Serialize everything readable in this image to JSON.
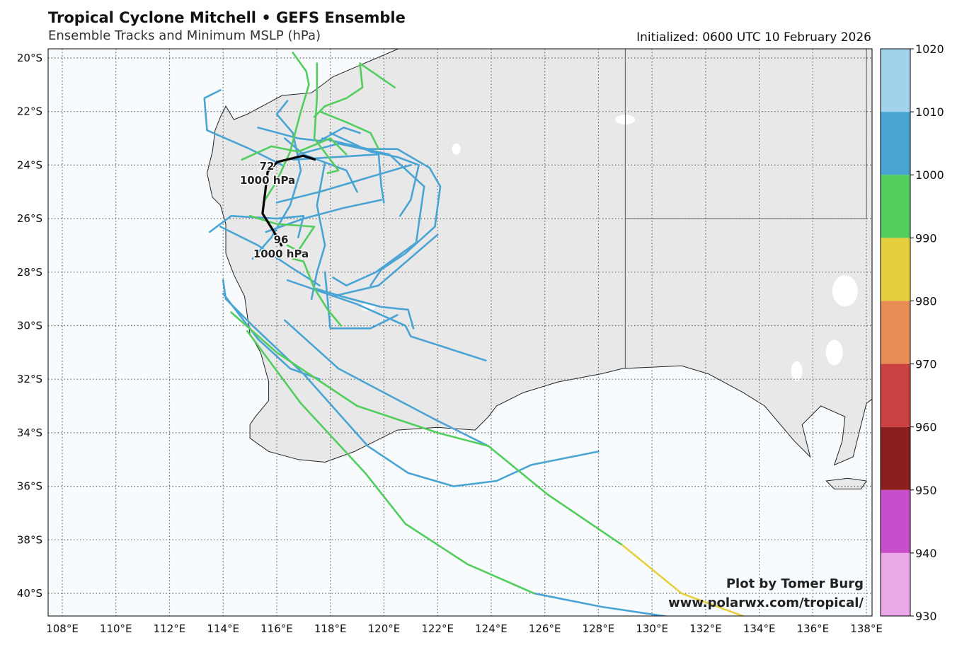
{
  "header": {
    "title": "Tropical Cyclone Mitchell • GEFS Ensemble",
    "subtitle": "Ensemble Tracks and Minimum MSLP (hPa)",
    "initialized": "Initialized: 0600 UTC 10 February 2026"
  },
  "credit": {
    "line1": "Plot by Tomer Burg",
    "line2": "www.polarwx.com/tropical/"
  },
  "chart_data": {
    "type": "map-tracks",
    "title": "Tropical Cyclone Mitchell • GEFS Ensemble",
    "lon_range": [
      107.5,
      138.2
    ],
    "lat_range": [
      -40.85,
      -19.65
    ],
    "lon_ticks": [
      "108°E",
      "110°E",
      "112°E",
      "114°E",
      "116°E",
      "118°E",
      "120°E",
      "122°E",
      "124°E",
      "126°E",
      "128°E",
      "130°E",
      "132°E",
      "134°E",
      "136°E",
      "138°E"
    ],
    "lat_ticks": [
      "20°S",
      "22°S",
      "24°S",
      "26°S",
      "28°S",
      "30°S",
      "32°S",
      "34°S",
      "36°S",
      "38°S",
      "40°S"
    ],
    "grid": true,
    "colorbar": {
      "label": "Minimum MSLP (hPa)",
      "ticks": [
        "930",
        "940",
        "950",
        "960",
        "970",
        "980",
        "990",
        "1000",
        "1010",
        "1020"
      ],
      "bins": [
        {
          "min": 930,
          "max": 940,
          "color": "#eba8e8"
        },
        {
          "min": 940,
          "max": 950,
          "color": "#c84fcb"
        },
        {
          "min": 950,
          "max": 960,
          "color": "#8b1e1e"
        },
        {
          "min": 960,
          "max": 970,
          "color": "#c94141"
        },
        {
          "min": 970,
          "max": 980,
          "color": "#e88c56"
        },
        {
          "min": 980,
          "max": 990,
          "color": "#e6cf3e"
        },
        {
          "min": 990,
          "max": 1000,
          "color": "#52cd5e"
        },
        {
          "min": 1000,
          "max": 1010,
          "color": "#4aa4d3"
        },
        {
          "min": 1010,
          "max": 1020,
          "color": "#a3d2ec"
        }
      ]
    },
    "mean_track": {
      "points": [
        [
          117.45,
          -23.8
        ],
        [
          116.98,
          -23.65
        ],
        [
          116.03,
          -23.88
        ],
        [
          115.66,
          -24.25
        ],
        [
          115.6,
          -24.76
        ],
        [
          115.47,
          -25.81
        ],
        [
          115.87,
          -26.45
        ],
        [
          116.19,
          -27.03
        ]
      ],
      "labels": [
        {
          "hour": "72",
          "pressure": "1000 hPa"
        },
        {
          "hour": "96",
          "pressure": "1000 hPa"
        }
      ]
    },
    "tracks": [
      {
        "color": "#4aa4d3",
        "points": [
          [
            114.0,
            -28.3
          ],
          [
            114.1,
            -29.0
          ],
          [
            115.1,
            -30.0
          ],
          [
            117.0,
            -31.8
          ],
          [
            119.4,
            -34.5
          ],
          [
            120.9,
            -35.5
          ],
          [
            122.6,
            -36.0
          ],
          [
            124.2,
            -35.8
          ],
          [
            125.5,
            -35.2
          ],
          [
            128.0,
            -34.7
          ]
        ]
      },
      {
        "color": "#4aa4d3",
        "points": [
          [
            114.0,
            -28.8
          ],
          [
            115.3,
            -30.5
          ],
          [
            116.5,
            -31.6
          ],
          [
            117.6,
            -32.0
          ]
        ]
      },
      {
        "color": "#4aa4d3",
        "points": [
          [
            116.3,
            -29.8
          ],
          [
            118.3,
            -31.6
          ],
          [
            120.0,
            -32.5
          ],
          [
            121.9,
            -33.5
          ],
          [
            123.9,
            -34.5
          ]
        ]
      },
      {
        "color": "#4aa4d3",
        "points": [
          [
            125.6,
            -40.0
          ],
          [
            128.1,
            -40.5
          ],
          [
            130.8,
            -40.9
          ]
        ]
      },
      {
        "color": "#52cd5e",
        "points": [
          [
            114.9,
            -30.2
          ],
          [
            116.9,
            -32.9
          ],
          [
            119.3,
            -35.5
          ],
          [
            120.8,
            -37.4
          ],
          [
            123.1,
            -38.9
          ],
          [
            125.6,
            -40.0
          ]
        ]
      },
      {
        "color": "#52cd5e",
        "points": [
          [
            114.3,
            -29.5
          ],
          [
            116.0,
            -31.0
          ],
          [
            119.0,
            -33.0
          ],
          [
            122.0,
            -34.0
          ],
          [
            123.9,
            -34.5
          ],
          [
            126.1,
            -36.3
          ],
          [
            128.9,
            -38.2
          ]
        ]
      },
      {
        "color": "#e6cf3e",
        "points": [
          [
            128.9,
            -38.2
          ],
          [
            131.1,
            -40.0
          ],
          [
            133.4,
            -40.85
          ]
        ]
      },
      {
        "color": "#4aa4d3",
        "points": [
          [
            117.7,
            -23.0
          ],
          [
            119.4,
            -23.4
          ],
          [
            120.5,
            -23.4
          ],
          [
            121.7,
            -24.1
          ],
          [
            122.1,
            -24.8
          ],
          [
            121.9,
            -26.3
          ],
          [
            120.8,
            -27.3
          ],
          [
            119.9,
            -27.9
          ],
          [
            119.5,
            -28.5
          ]
        ]
      },
      {
        "color": "#4aa4d3",
        "points": [
          [
            116.8,
            -23.6
          ],
          [
            118.3,
            -23.2
          ],
          [
            120.2,
            -23.6
          ],
          [
            121.5,
            -24.8
          ],
          [
            121.2,
            -26.9
          ],
          [
            119.7,
            -28.0
          ],
          [
            118.6,
            -28.5
          ],
          [
            118.1,
            -28.2
          ]
        ]
      },
      {
        "color": "#4aa4d3",
        "points": [
          [
            118.0,
            -22.8
          ],
          [
            119.5,
            -23.5
          ],
          [
            120.5,
            -23.7
          ],
          [
            121.3,
            -24.0
          ],
          [
            121.0,
            -25.3
          ],
          [
            120.6,
            -25.9
          ]
        ]
      },
      {
        "color": "#4aa4d3",
        "points": [
          [
            116.6,
            -23.8
          ],
          [
            119.8,
            -23.6
          ],
          [
            119.9,
            -24.8
          ],
          [
            120.0,
            -25.4
          ]
        ]
      },
      {
        "color": "#4aa4d3",
        "points": [
          [
            116.0,
            -25.4
          ],
          [
            117.6,
            -25.0
          ],
          [
            119.3,
            -24.5
          ],
          [
            121.0,
            -24.0
          ]
        ]
      },
      {
        "color": "#4aa4d3",
        "points": [
          [
            115.6,
            -26.5
          ],
          [
            117.0,
            -26.0
          ],
          [
            118.5,
            -25.6
          ],
          [
            119.9,
            -25.3
          ]
        ]
      },
      {
        "color": "#4aa4d3",
        "points": [
          [
            118.1,
            -28.9
          ],
          [
            119.8,
            -28.5
          ],
          [
            122.0,
            -26.6
          ]
        ]
      },
      {
        "color": "#4aa4d3",
        "points": [
          [
            117.4,
            -28.6
          ],
          [
            118.4,
            -28.9
          ],
          [
            119.9,
            -29.3
          ],
          [
            120.9,
            -29.4
          ],
          [
            121.1,
            -30.1
          ]
        ]
      },
      {
        "color": "#4aa4d3",
        "points": [
          [
            116.4,
            -28.3
          ],
          [
            119.0,
            -29.2
          ],
          [
            120.8,
            -30.0
          ],
          [
            121.0,
            -30.4
          ],
          [
            123.8,
            -31.3
          ]
        ]
      },
      {
        "color": "#4aa4d3",
        "points": [
          [
            117.8,
            -28.0
          ],
          [
            118.0,
            -30.1
          ],
          [
            119.5,
            -30.1
          ],
          [
            120.5,
            -29.6
          ]
        ]
      },
      {
        "color": "#4aa4d3",
        "points": [
          [
            113.9,
            -21.2
          ],
          [
            113.3,
            -21.5
          ],
          [
            113.4,
            -22.7
          ],
          [
            115.0,
            -23.4
          ],
          [
            116.2,
            -24.0
          ]
        ]
      },
      {
        "color": "#4aa4d3",
        "points": [
          [
            115.3,
            -22.6
          ],
          [
            116.8,
            -23.0
          ],
          [
            117.6,
            -23.1
          ],
          [
            118.5,
            -22.6
          ],
          [
            119.1,
            -22.8
          ]
        ]
      },
      {
        "color": "#4aa4d3",
        "points": [
          [
            116.4,
            -21.6
          ],
          [
            116.0,
            -22.1
          ],
          [
            116.6,
            -22.8
          ],
          [
            116.9,
            -24.2
          ],
          [
            116.5,
            -25.5
          ],
          [
            115.8,
            -26.7
          ],
          [
            115.1,
            -27.5
          ]
        ]
      },
      {
        "color": "#4aa4d3",
        "points": [
          [
            113.5,
            -26.5
          ],
          [
            114.3,
            -25.9
          ],
          [
            116.0,
            -26.0
          ],
          [
            117.0,
            -25.9
          ],
          [
            116.8,
            -26.7
          ]
        ]
      },
      {
        "color": "#4aa4d3",
        "points": [
          [
            113.9,
            -26.3
          ],
          [
            115.3,
            -27.0
          ],
          [
            116.5,
            -27.8
          ],
          [
            117.6,
            -28.5
          ]
        ]
      },
      {
        "color": "#4aa4d3",
        "points": [
          [
            117.8,
            -23.9
          ],
          [
            117.5,
            -25.5
          ],
          [
            117.8,
            -27.0
          ],
          [
            117.5,
            -28.0
          ],
          [
            117.3,
            -29.0
          ]
        ]
      },
      {
        "color": "#4aa4d3",
        "points": [
          [
            116.3,
            -23.0
          ],
          [
            117.0,
            -23.6
          ],
          [
            118.6,
            -24.2
          ],
          [
            119.0,
            -25.0
          ]
        ]
      },
      {
        "color": "#52cd5e",
        "points": [
          [
            116.6,
            -19.8
          ],
          [
            117.1,
            -20.5
          ],
          [
            117.2,
            -21.0
          ],
          [
            116.9,
            -22.0
          ],
          [
            116.5,
            -23.5
          ],
          [
            116.0,
            -24.6
          ],
          [
            115.5,
            -25.4
          ]
        ]
      },
      {
        "color": "#52cd5e",
        "points": [
          [
            120.4,
            -21.1
          ],
          [
            119.1,
            -20.2
          ],
          [
            119.2,
            -21.1
          ],
          [
            118.6,
            -21.5
          ],
          [
            117.8,
            -21.8
          ],
          [
            117.4,
            -22.2
          ]
        ]
      },
      {
        "color": "#52cd5e",
        "points": [
          [
            117.5,
            -20.2
          ],
          [
            117.5,
            -21.5
          ],
          [
            117.4,
            -23.0
          ],
          [
            118.3,
            -24.2
          ],
          [
            117.9,
            -24.3
          ]
        ]
      },
      {
        "color": "#52cd5e",
        "points": [
          [
            115.0,
            -25.9
          ],
          [
            116.0,
            -26.2
          ],
          [
            117.4,
            -26.3
          ],
          [
            116.8,
            -27.2
          ],
          [
            116.4,
            -27.0
          ]
        ]
      },
      {
        "color": "#52cd5e",
        "points": [
          [
            116.6,
            -27.5
          ],
          [
            117.0,
            -27.6
          ],
          [
            117.4,
            -28.6
          ],
          [
            117.9,
            -29.4
          ],
          [
            118.4,
            -30.0
          ]
        ]
      },
      {
        "color": "#52cd5e",
        "points": [
          [
            114.7,
            -23.8
          ],
          [
            115.8,
            -23.3
          ],
          [
            116.8,
            -23.5
          ],
          [
            118.0,
            -23.0
          ],
          [
            118.6,
            -23.6
          ]
        ]
      },
      {
        "color": "#52cd5e",
        "points": [
          [
            117.6,
            -22.0
          ],
          [
            118.6,
            -22.4
          ],
          [
            119.5,
            -22.8
          ],
          [
            119.8,
            -23.4
          ]
        ]
      }
    ]
  }
}
